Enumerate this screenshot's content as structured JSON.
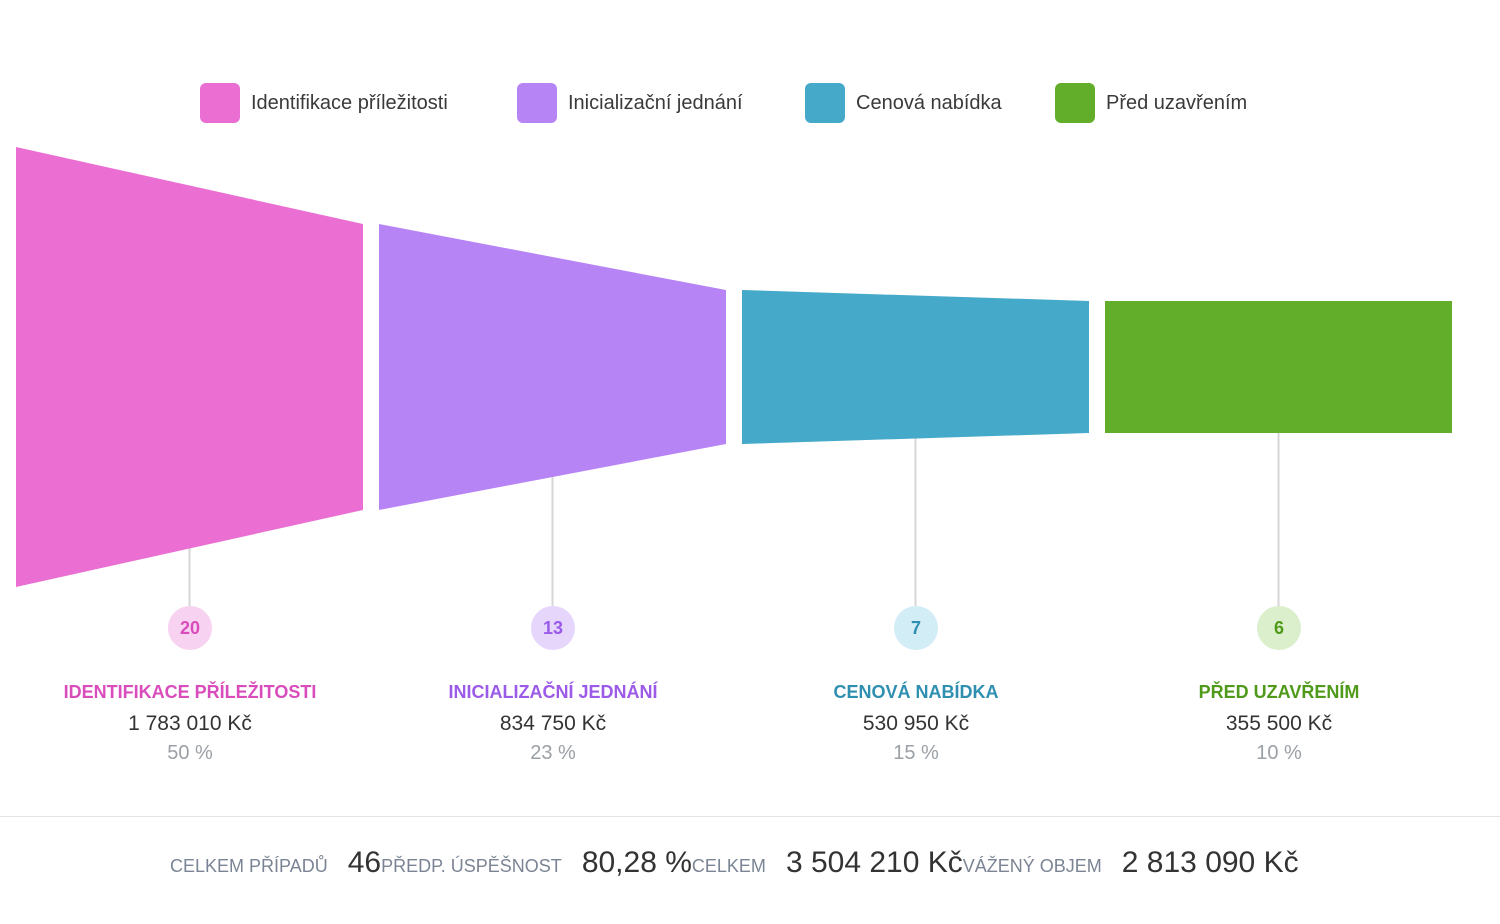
{
  "chart_data": {
    "type": "funnel",
    "currency": "Kč",
    "stages": [
      {
        "name": "Identifikace příležitosti",
        "label": "IDENTIFIKACE PŘÍLEŽITOSTI",
        "count": 20,
        "count_text": "20",
        "amount": 1783010,
        "amount_text": "1 783 010 Kč",
        "percent": 50,
        "percent_text": "50 %",
        "color": "#eb6fd3",
        "badge_bg": "#f7d2f1"
      },
      {
        "name": "Inicializační jednání",
        "label": "INICIALIZAČNÍ JEDNÁNÍ",
        "count": 13,
        "count_text": "13",
        "amount": 834750,
        "amount_text": "834 750 Kč",
        "percent": 23,
        "percent_text": "23 %",
        "color": "#b784f6",
        "badge_bg": "#e6d6fc"
      },
      {
        "name": "Cenová nabídka",
        "label": "CENOVÁ NABÍDKA",
        "count": 7,
        "count_text": "7",
        "amount": 530950,
        "amount_text": "530 950 Kč",
        "percent": 15,
        "percent_text": "15 %",
        "color": "#45a9c9",
        "badge_bg": "#d3edf6"
      },
      {
        "name": "Před uzavřením",
        "label": "PŘED UZAVŘENÍM",
        "count": 6,
        "count_text": "6",
        "amount": 355500,
        "amount_text": "355 500 Kč",
        "percent": 10,
        "percent_text": "10 %",
        "color": "#62ae2a",
        "badge_bg": "#dbefcd"
      }
    ],
    "label_colors": [
      "#d94cbc",
      "#9b5ae8",
      "#2f8fb0",
      "#4f9a1b"
    ]
  },
  "summary": {
    "total_cases_label": "Celkem případů",
    "total_cases_value": "46",
    "success_label": "Předp. úspěšnost",
    "success_value": "80,28 %",
    "total_label": "Celkem",
    "total_value": "3 504 210 Kč",
    "weighted_label": "Vážený objem",
    "weighted_value": "2 813 090 Kč"
  }
}
